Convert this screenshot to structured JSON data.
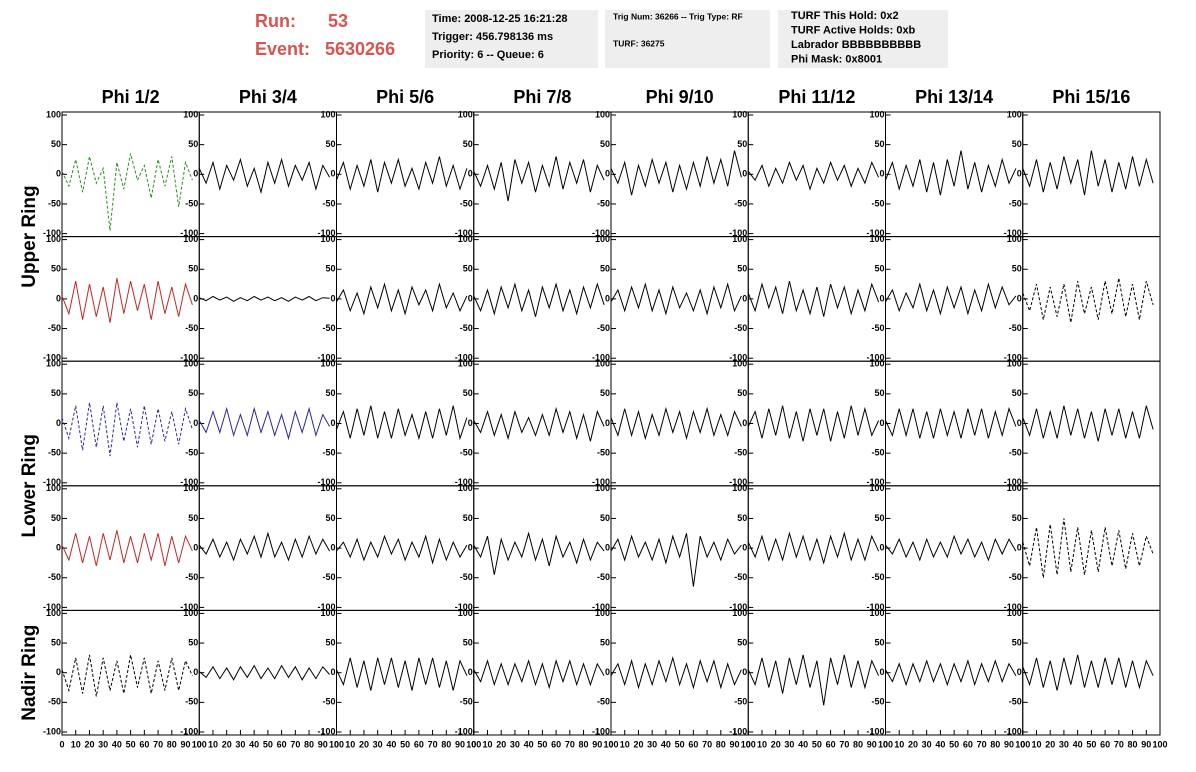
{
  "header": {
    "run_label": "Run:",
    "run": "53",
    "event_label": "Event:",
    "event": "5630266",
    "info1": [
      "Time: 2008-12-25 16:21:28",
      "Trigger: 456.798136 ms",
      "Priority: 6 -- Queue: 6"
    ],
    "info2": [
      "Trig Num: 36266 -- Trig Type: RF",
      "TURF: 36275"
    ],
    "info3": [
      "TURF This Hold: 0x2",
      "TURF Active Holds: 0xb",
      "Labrador BBBBBBBBBB",
      "Phi Mask: 0x8001"
    ]
  },
  "columns": [
    "Phi 1/2",
    "Phi 3/4",
    "Phi 5/6",
    "Phi 7/8",
    "Phi 9/10",
    "Phi 11/12",
    "Phi 13/14",
    "Phi 15/16"
  ],
  "rings": [
    "Upper Ring",
    "Lower Ring",
    "Nadir Ring"
  ],
  "axes": {
    "xlim": [
      0,
      100
    ],
    "xticks": [
      0,
      10,
      20,
      30,
      40,
      50,
      60,
      70,
      80,
      90,
      100
    ],
    "ylim": [
      -100,
      100
    ],
    "yticks": [
      -100,
      -50,
      0,
      50,
      100
    ]
  },
  "x": [
    0,
    5,
    10,
    15,
    20,
    25,
    30,
    35,
    40,
    45,
    50,
    55,
    60,
    65,
    70,
    75,
    80,
    85,
    90,
    95
  ],
  "rows": [
    [
      {
        "color": "#2e8b22",
        "dashed": true,
        "values": [
          5,
          -20,
          25,
          -30,
          30,
          -15,
          10,
          -95,
          20,
          -25,
          35,
          -10,
          15,
          -40,
          25,
          -20,
          30,
          -55,
          20,
          -10
        ]
      },
      {
        "color": "#000000",
        "dashed": false,
        "values": [
          10,
          -15,
          20,
          -25,
          15,
          -10,
          25,
          -20,
          10,
          -30,
          20,
          -15,
          25,
          -20,
          15,
          -10,
          20,
          -25,
          15,
          -5
        ]
      },
      {
        "color": "#000000",
        "dashed": false,
        "values": [
          -10,
          20,
          -25,
          15,
          -20,
          25,
          -30,
          20,
          -15,
          25,
          -20,
          10,
          -25,
          20,
          -15,
          30,
          -20,
          15,
          -25,
          10
        ]
      },
      {
        "color": "#000000",
        "dashed": false,
        "values": [
          5,
          -20,
          15,
          -25,
          20,
          -45,
          25,
          -15,
          20,
          -30,
          15,
          -20,
          30,
          -25,
          20,
          -15,
          25,
          -30,
          15,
          -10
        ]
      },
      {
        "color": "#000000",
        "dashed": false,
        "values": [
          10,
          -15,
          20,
          -35,
          15,
          -20,
          25,
          -15,
          20,
          -30,
          15,
          -25,
          20,
          -20,
          30,
          -15,
          25,
          -20,
          40,
          -5
        ]
      },
      {
        "color": "#000000",
        "dashed": false,
        "values": [
          5,
          -10,
          15,
          -20,
          10,
          -15,
          20,
          -10,
          15,
          -25,
          10,
          -15,
          20,
          -10,
          15,
          -20,
          10,
          -15,
          20,
          -5
        ]
      },
      {
        "color": "#000000",
        "dashed": false,
        "values": [
          -10,
          20,
          -25,
          15,
          -20,
          25,
          -30,
          20,
          -35,
          25,
          -20,
          40,
          -25,
          20,
          -30,
          15,
          -20,
          25,
          -15,
          10
        ]
      },
      {
        "color": "#000000",
        "dashed": false,
        "values": [
          10,
          -20,
          25,
          -30,
          20,
          -25,
          30,
          -15,
          25,
          -35,
          40,
          -20,
          25,
          -30,
          20,
          -25,
          30,
          -20,
          25,
          -15
        ]
      }
    ],
    [
      {
        "color": "#c0282a",
        "dashed": false,
        "values": [
          5,
          -25,
          30,
          -35,
          25,
          -30,
          20,
          -40,
          35,
          -25,
          30,
          -20,
          25,
          -35,
          30,
          -25,
          20,
          -30,
          25,
          -10
        ]
      },
      {
        "color": "#000000",
        "dashed": false,
        "values": [
          2,
          -3,
          4,
          -2,
          3,
          -4,
          2,
          -3,
          4,
          -2,
          3,
          -3,
          2,
          -4,
          3,
          -2,
          4,
          -3,
          2,
          1
        ]
      },
      {
        "color": "#000000",
        "dashed": false,
        "values": [
          -5,
          15,
          -20,
          10,
          -25,
          20,
          -15,
          25,
          -20,
          15,
          -25,
          20,
          -10,
          15,
          -20,
          25,
          -15,
          10,
          -20,
          5
        ]
      },
      {
        "color": "#000000",
        "dashed": false,
        "values": [
          5,
          -20,
          15,
          -25,
          20,
          -15,
          25,
          -20,
          15,
          -30,
          20,
          -15,
          25,
          -20,
          15,
          -25,
          20,
          -15,
          25,
          -10
        ]
      },
      {
        "color": "#000000",
        "dashed": false,
        "values": [
          -5,
          15,
          -20,
          20,
          -15,
          25,
          -20,
          15,
          -25,
          20,
          -15,
          10,
          -20,
          15,
          -25,
          20,
          -15,
          25,
          -20,
          5
        ]
      },
      {
        "color": "#000000",
        "dashed": false,
        "values": [
          10,
          -20,
          25,
          -15,
          20,
          -25,
          30,
          -20,
          15,
          -25,
          20,
          -30,
          25,
          -15,
          20,
          -25,
          15,
          -20,
          25,
          -5
        ]
      },
      {
        "color": "#000000",
        "dashed": false,
        "values": [
          -5,
          15,
          -20,
          10,
          -15,
          25,
          -20,
          15,
          -25,
          20,
          -15,
          20,
          -25,
          15,
          -20,
          25,
          -15,
          20,
          -10,
          5
        ]
      },
      {
        "color": "#000000",
        "dashed": true,
        "values": [
          10,
          -20,
          25,
          -35,
          20,
          -30,
          25,
          -40,
          30,
          -25,
          20,
          -35,
          30,
          -25,
          35,
          -30,
          25,
          -35,
          30,
          -10
        ]
      }
    ],
    [
      {
        "color": "#2a2a9a",
        "dashed": true,
        "values": [
          10,
          -25,
          30,
          -45,
          35,
          -40,
          30,
          -55,
          35,
          -30,
          25,
          -40,
          30,
          -35,
          25,
          -30,
          20,
          -35,
          25,
          -10
        ]
      },
      {
        "color": "#2a2a9a",
        "dashed": false,
        "values": [
          5,
          -15,
          20,
          -15,
          25,
          -20,
          15,
          -20,
          25,
          -15,
          20,
          -20,
          15,
          -25,
          20,
          -15,
          25,
          -20,
          15,
          -5
        ]
      },
      {
        "color": "#000000",
        "dashed": false,
        "values": [
          -10,
          20,
          -25,
          25,
          -20,
          30,
          -25,
          20,
          -25,
          25,
          -20,
          15,
          -25,
          20,
          -25,
          25,
          -20,
          30,
          -25,
          10
        ]
      },
      {
        "color": "#000000",
        "dashed": false,
        "values": [
          5,
          -15,
          20,
          -20,
          15,
          -25,
          20,
          -15,
          10,
          -20,
          15,
          -20,
          25,
          -15,
          20,
          -25,
          15,
          -30,
          20,
          -5
        ]
      },
      {
        "color": "#000000",
        "dashed": false,
        "values": [
          10,
          -20,
          25,
          -20,
          20,
          -25,
          15,
          -20,
          25,
          -15,
          20,
          -25,
          20,
          -15,
          25,
          -20,
          15,
          -20,
          20,
          -5
        ]
      },
      {
        "color": "#000000",
        "dashed": false,
        "values": [
          -5,
          20,
          -25,
          25,
          -20,
          30,
          -25,
          20,
          -30,
          25,
          -20,
          25,
          -30,
          20,
          -25,
          30,
          -20,
          25,
          -20,
          5
        ]
      },
      {
        "color": "#000000",
        "dashed": false,
        "values": [
          5,
          -20,
          25,
          -20,
          25,
          -25,
          20,
          -25,
          25,
          -20,
          20,
          -25,
          25,
          -20,
          25,
          -25,
          20,
          -20,
          25,
          -5
        ]
      },
      {
        "color": "#000000",
        "dashed": false,
        "values": [
          10,
          -20,
          25,
          -25,
          20,
          -25,
          30,
          -20,
          25,
          -25,
          20,
          -30,
          25,
          -20,
          25,
          -25,
          20,
          -25,
          30,
          -10
        ]
      }
    ],
    [
      {
        "color": "#c0282a",
        "dashed": false,
        "values": [
          5,
          -20,
          25,
          -25,
          20,
          -30,
          25,
          -20,
          30,
          -25,
          20,
          -25,
          25,
          -20,
          25,
          -30,
          20,
          -25,
          20,
          -5
        ]
      },
      {
        "color": "#000000",
        "dashed": false,
        "values": [
          5,
          -10,
          15,
          -15,
          10,
          -20,
          15,
          -10,
          20,
          -15,
          25,
          -15,
          10,
          -20,
          15,
          -15,
          20,
          -10,
          15,
          -5
        ]
      },
      {
        "color": "#000000",
        "dashed": false,
        "values": [
          -5,
          10,
          -15,
          15,
          -20,
          10,
          -15,
          20,
          -10,
          15,
          -20,
          10,
          -15,
          20,
          -25,
          15,
          -20,
          10,
          -15,
          5
        ]
      },
      {
        "color": "#000000",
        "dashed": false,
        "values": [
          5,
          -15,
          20,
          -45,
          15,
          -20,
          10,
          -15,
          25,
          -20,
          15,
          -30,
          20,
          -15,
          10,
          -25,
          15,
          -20,
          10,
          -5
        ]
      },
      {
        "color": "#000000",
        "dashed": false,
        "values": [
          -5,
          15,
          -20,
          20,
          -15,
          10,
          -20,
          15,
          -25,
          20,
          -15,
          25,
          -65,
          20,
          -15,
          10,
          -20,
          15,
          -10,
          5
        ]
      },
      {
        "color": "#000000",
        "dashed": false,
        "values": [
          10,
          -15,
          20,
          -20,
          15,
          -20,
          25,
          -15,
          20,
          -20,
          15,
          -25,
          20,
          -15,
          25,
          -20,
          15,
          -20,
          20,
          -5
        ]
      },
      {
        "color": "#000000",
        "dashed": false,
        "values": [
          5,
          -10,
          15,
          -15,
          10,
          -20,
          15,
          -15,
          10,
          -15,
          20,
          -10,
          15,
          -15,
          10,
          -20,
          15,
          -10,
          15,
          -5
        ]
      },
      {
        "color": "#000000",
        "dashed": true,
        "values": [
          10,
          -30,
          35,
          -50,
          40,
          -45,
          50,
          -40,
          35,
          -45,
          30,
          -40,
          35,
          -30,
          30,
          -35,
          25,
          -30,
          20,
          -10
        ]
      }
    ],
    [
      {
        "color": "#000000",
        "dashed": true,
        "values": [
          5,
          -30,
          25,
          -35,
          30,
          -40,
          25,
          -30,
          20,
          -35,
          30,
          -25,
          25,
          -35,
          20,
          -30,
          25,
          -30,
          20,
          -5
        ]
      },
      {
        "color": "#000000",
        "dashed": false,
        "values": [
          2,
          -8,
          10,
          -10,
          8,
          -12,
          10,
          -8,
          12,
          -10,
          8,
          -10,
          12,
          -8,
          10,
          -12,
          8,
          -10,
          10,
          -3
        ]
      },
      {
        "color": "#000000",
        "dashed": false,
        "values": [
          5,
          -20,
          25,
          -25,
          20,
          -30,
          25,
          -20,
          25,
          -25,
          20,
          -30,
          25,
          -20,
          25,
          -25,
          20,
          -30,
          20,
          -5
        ]
      },
      {
        "color": "#000000",
        "dashed": false,
        "values": [
          5,
          -15,
          20,
          -20,
          15,
          -20,
          15,
          -15,
          20,
          -20,
          15,
          -25,
          20,
          -15,
          20,
          -20,
          15,
          -20,
          15,
          -5
        ]
      },
      {
        "color": "#000000",
        "dashed": false,
        "values": [
          -5,
          15,
          -20,
          20,
          -25,
          15,
          -20,
          20,
          -15,
          25,
          -20,
          15,
          -25,
          20,
          -15,
          20,
          -25,
          15,
          -20,
          5
        ]
      },
      {
        "color": "#000000",
        "dashed": false,
        "values": [
          5,
          -20,
          25,
          -25,
          20,
          -35,
          25,
          -20,
          30,
          -25,
          20,
          -55,
          25,
          -20,
          30,
          -25,
          20,
          -25,
          20,
          -5
        ]
      },
      {
        "color": "#000000",
        "dashed": false,
        "values": [
          5,
          -15,
          15,
          -20,
          15,
          -15,
          20,
          -15,
          15,
          -20,
          15,
          -15,
          20,
          -20,
          15,
          -15,
          20,
          -15,
          15,
          -5
        ]
      },
      {
        "color": "#000000",
        "dashed": false,
        "values": [
          10,
          -20,
          25,
          -25,
          20,
          -30,
          25,
          -20,
          30,
          -25,
          20,
          -25,
          25,
          -20,
          25,
          -25,
          20,
          -25,
          20,
          -5
        ]
      }
    ]
  ]
}
